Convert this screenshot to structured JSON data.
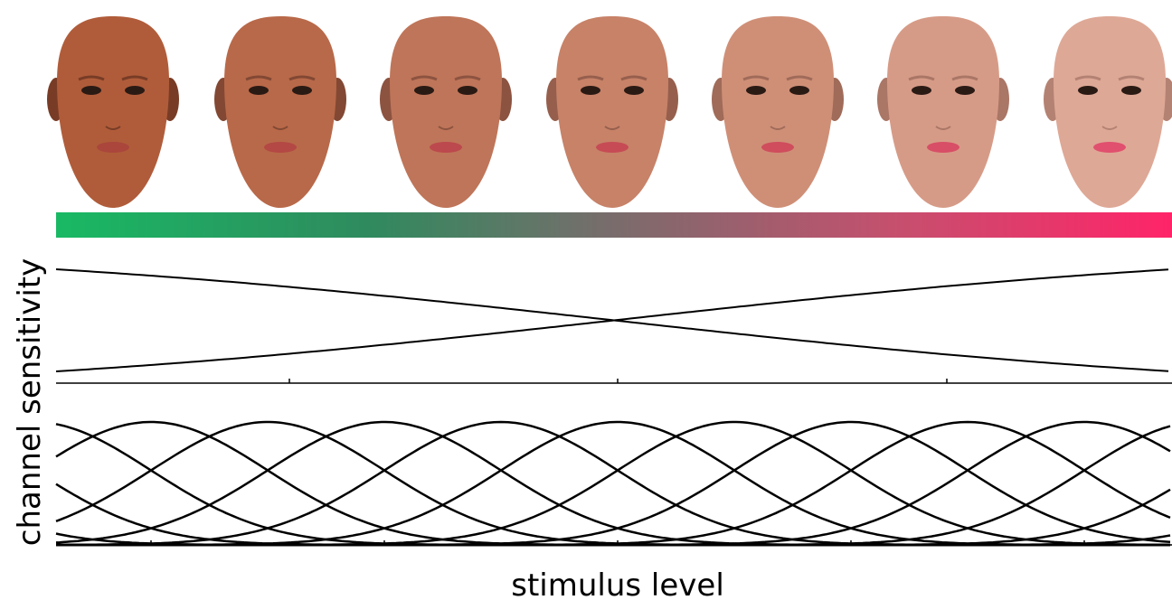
{
  "y_axis_label": "channel sensitivity",
  "x_axis_label": "stimulus level"
}
